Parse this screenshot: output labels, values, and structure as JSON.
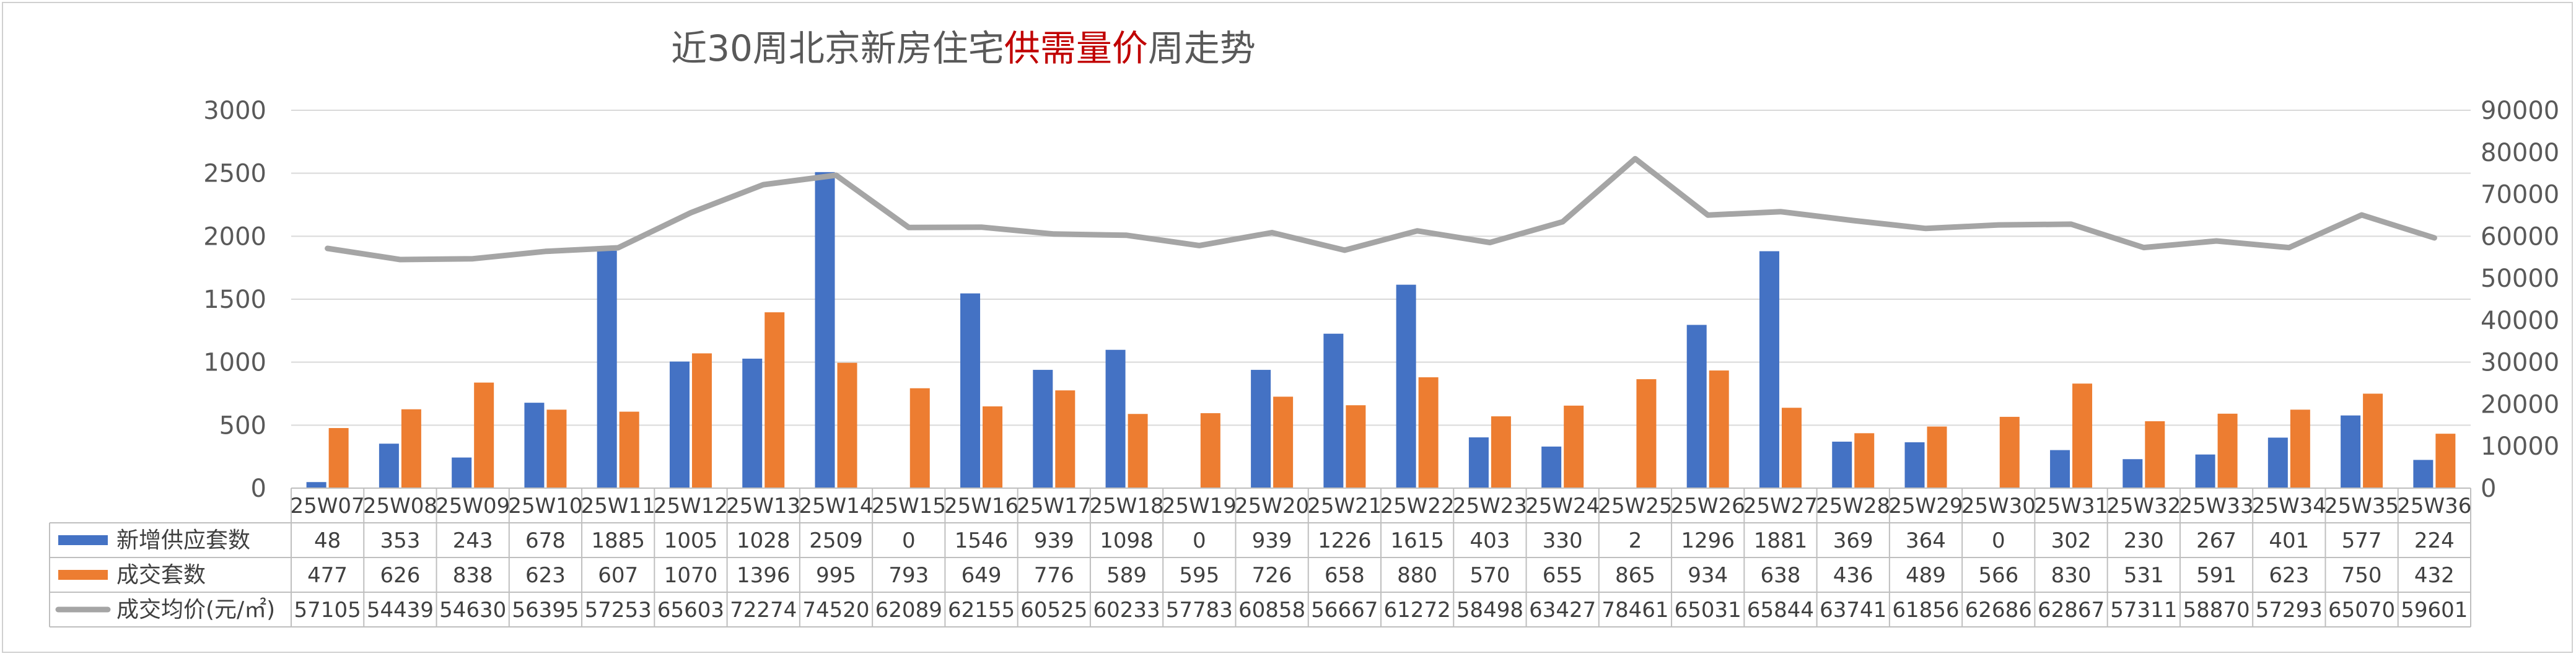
{
  "chart_data": {
    "type": "bar",
    "title": {
      "prefix": "近30周北京新房住宅",
      "highlight": "供需量价",
      "suffix": "周走势",
      "highlight_color": "#c00000"
    },
    "categories": [
      "25W07",
      "25W08",
      "25W09",
      "25W10",
      "25W11",
      "25W12",
      "25W13",
      "25W14",
      "25W15",
      "25W16",
      "25W17",
      "25W18",
      "25W19",
      "25W20",
      "25W21",
      "25W22",
      "25W23",
      "25W24",
      "25W25",
      "25W26",
      "25W27",
      "25W28",
      "25W29",
      "25W30",
      "25W31",
      "25W32",
      "25W33",
      "25W34",
      "25W35",
      "25W36"
    ],
    "series": [
      {
        "name": "新增供应套数",
        "type": "bar",
        "axis": "left",
        "color": "#4472c4",
        "values": [
          48,
          353,
          243,
          678,
          1885,
          1005,
          1028,
          2509,
          0,
          1546,
          939,
          1098,
          0,
          939,
          1226,
          1615,
          403,
          330,
          2,
          1296,
          1881,
          369,
          364,
          0,
          302,
          230,
          267,
          401,
          577,
          224
        ]
      },
      {
        "name": "成交套数",
        "type": "bar",
        "axis": "left",
        "color": "#ed7d31",
        "values": [
          477,
          626,
          838,
          623,
          607,
          1070,
          1396,
          995,
          793,
          649,
          776,
          589,
          595,
          726,
          658,
          880,
          570,
          655,
          865,
          934,
          638,
          436,
          489,
          566,
          830,
          531,
          591,
          623,
          750,
          432
        ]
      },
      {
        "name": "成交均价(元/㎡)",
        "type": "line",
        "axis": "right",
        "color": "#a5a5a5",
        "values": [
          57105,
          54439,
          54630,
          56395,
          57253,
          65603,
          72274,
          74520,
          62089,
          62155,
          60525,
          60233,
          57783,
          60858,
          56667,
          61272,
          58498,
          63427,
          78461,
          65031,
          65844,
          63741,
          61856,
          62686,
          62867,
          57311,
          58870,
          57293,
          65070,
          59601
        ]
      }
    ],
    "left_axis": {
      "ylim": [
        0,
        3000
      ],
      "ticks": [
        "0",
        "500",
        "1000",
        "1500",
        "2000",
        "2500",
        "3000"
      ]
    },
    "right_axis": {
      "ylim": [
        0,
        90000
      ],
      "ticks": [
        "0",
        "10000",
        "20000",
        "30000",
        "40000",
        "50000",
        "60000",
        "70000",
        "80000",
        "90000"
      ]
    },
    "grid": true,
    "data_table": true
  }
}
